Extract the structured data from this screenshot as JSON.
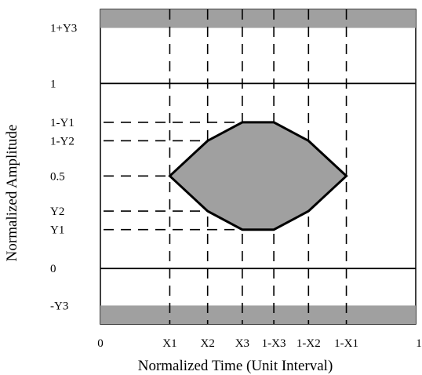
{
  "diagram": {
    "x_axis_title": "Normalized Time (Unit Interval)",
    "y_axis_title": "Normalized Amplitude",
    "x_ticks": [
      {
        "label": "0",
        "value": 0
      },
      {
        "label": "X1",
        "value": 0.22
      },
      {
        "label": "X2",
        "value": 0.34
      },
      {
        "label": "X3",
        "value": 0.45
      },
      {
        "label": "1-X3",
        "value": 0.55
      },
      {
        "label": "1-X2",
        "value": 0.66
      },
      {
        "label": "1-X1",
        "value": 0.78
      },
      {
        "label": "1",
        "value": 1
      }
    ],
    "y_ticks": [
      {
        "label": "1+Y3",
        "value": 1.3
      },
      {
        "label": "1",
        "value": 1.0
      },
      {
        "label": "1-Y1",
        "value": 0.79
      },
      {
        "label": "1-Y2",
        "value": 0.69
      },
      {
        "label": "0.5",
        "value": 0.5
      },
      {
        "label": "Y2",
        "value": 0.31
      },
      {
        "label": "Y1",
        "value": 0.21
      },
      {
        "label": "0",
        "value": 0.0
      },
      {
        "label": "-Y3",
        "value": -0.2
      }
    ],
    "y_range": [
      -0.3,
      1.4
    ],
    "colors": {
      "mask_fill": "#a0a0a0",
      "line": "#000000",
      "background": "#ffffff"
    }
  }
}
